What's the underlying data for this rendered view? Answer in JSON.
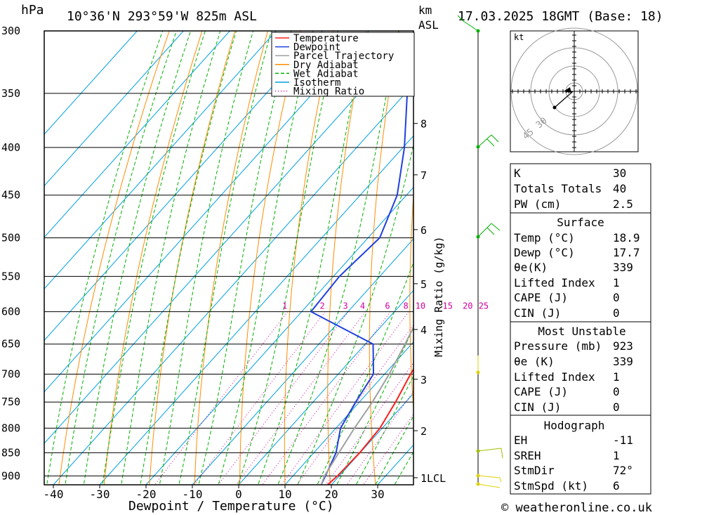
{
  "header": {
    "hpa_unit": "hPa",
    "location": "10°36'N  293°59'W  825m  ASL",
    "km_unit": "km",
    "asl": "ASL",
    "datetime": "17.03.2025  18GMT  (Base: 18)"
  },
  "x_axis_label": "Dewpoint / Temperature (°C)",
  "mixing_axis_label": "Mixing Ratio (g/kg)",
  "legend": [
    {
      "label": "Temperature",
      "color": "#ff2020"
    },
    {
      "label": "Dewpoint",
      "color": "#2040e0"
    },
    {
      "label": "Parcel Trajectory",
      "color": "#a0a0a0"
    },
    {
      "label": "Dry Adiabat",
      "color": "#ff8c00"
    },
    {
      "label": "Wet Adiabat",
      "color": "#00b000"
    },
    {
      "label": "Isotherm",
      "color": "#00a0e0"
    },
    {
      "label": "Mixing Ratio",
      "color": "#d000a0"
    }
  ],
  "chart_data": {
    "type": "line",
    "pressure_levels": [
      300,
      350,
      400,
      450,
      500,
      550,
      600,
      650,
      700,
      750,
      800,
      850,
      900
    ],
    "temperature_ticks": [
      -40,
      -30,
      -20,
      -10,
      0,
      10,
      20,
      30
    ],
    "km_ticks": [
      {
        "label": "8",
        "p": 377
      },
      {
        "label": "7",
        "p": 428
      },
      {
        "label": "6",
        "p": 490
      },
      {
        "label": "5",
        "p": 560
      },
      {
        "label": "4",
        "p": 627
      },
      {
        "label": "3",
        "p": 709
      },
      {
        "label": "2",
        "p": 805
      },
      {
        "label": "1LCL",
        "p": 904
      }
    ],
    "mixing_ratio_labels": [
      "1",
      "2",
      "3",
      "4",
      "6",
      "8",
      "10",
      "15",
      "20",
      "25"
    ],
    "series": [
      {
        "name": "Temperature",
        "color": "#ff2020",
        "points": [
          [
            920,
            19.2
          ],
          [
            900,
            19.6
          ],
          [
            850,
            19.9
          ],
          [
            800,
            19.5
          ],
          [
            750,
            17.8
          ],
          [
            700,
            15.6
          ],
          [
            650,
            13.7
          ],
          [
            600,
            11.8
          ],
          [
            550,
            9.0
          ],
          [
            500,
            5.6
          ],
          [
            450,
            1.7
          ],
          [
            400,
            -5.7
          ],
          [
            350,
            -14.1
          ],
          [
            300,
            -23.6
          ]
        ]
      },
      {
        "name": "Dewpoint",
        "color": "#2040e0",
        "points": [
          [
            920,
            17.8
          ],
          [
            900,
            17.0
          ],
          [
            850,
            14.8
          ],
          [
            800,
            11.0
          ],
          [
            750,
            9.2
          ],
          [
            700,
            7.6
          ],
          [
            650,
            1.7
          ],
          [
            600,
            -18.0
          ],
          [
            550,
            -18.7
          ],
          [
            500,
            -17.5
          ],
          [
            450,
            -22.0
          ],
          [
            400,
            -29.7
          ],
          [
            350,
            -39.6
          ],
          [
            300,
            -45.4
          ]
        ]
      },
      {
        "name": "Parcel Trajectory",
        "color": "#a0a0a0",
        "points": [
          [
            920,
            17.8
          ],
          [
            900,
            16.8
          ],
          [
            850,
            15.4
          ],
          [
            800,
            14.0
          ],
          [
            750,
            12.8
          ],
          [
            700,
            11.0
          ],
          [
            650,
            8.6
          ],
          [
            600,
            5.8
          ],
          [
            550,
            2.4
          ],
          [
            500,
            -1.6
          ],
          [
            450,
            -6.6
          ],
          [
            400,
            -12.8
          ],
          [
            350,
            -20.4
          ],
          [
            300,
            -29.8
          ]
        ]
      }
    ],
    "xlim": [
      -43,
      37
    ],
    "ylim": [
      300,
      920
    ]
  },
  "hodograph": {
    "unit": "kt",
    "ring_labels": [
      "30",
      "45"
    ]
  },
  "indices": {
    "k_label": "K",
    "k_value": "30",
    "tt_label": "Totals Totals",
    "tt_value": "40",
    "pw_label": "PW (cm)",
    "pw_value": "2.5"
  },
  "surface": {
    "title": "Surface",
    "temp_label": "Temp (°C)",
    "temp_value": "18.9",
    "dewp_label": "Dewp (°C)",
    "dewp_value": "17.7",
    "theta_label": "θe(K)",
    "theta_value": "339",
    "li_label": "Lifted Index",
    "li_value": "1",
    "cape_label": "CAPE (J)",
    "cape_value": "0",
    "cin_label": "CIN (J)",
    "cin_value": "0"
  },
  "most_unstable": {
    "title": "Most Unstable",
    "pressure_label": "Pressure (mb)",
    "pressure_value": "923",
    "theta_label": "θe (K)",
    "theta_value": "339",
    "li_label": "Lifted Index",
    "li_value": "1",
    "cape_label": "CAPE (J)",
    "cape_value": "0",
    "cin_label": "CIN (J)",
    "cin_value": "0"
  },
  "hodograph_table": {
    "title": "Hodograph",
    "eh_label": "EH",
    "eh_value": "-11",
    "srh_label": "SREH",
    "srh_value": "1",
    "stmdir_label": "StmDir",
    "stmdir_value": "72°",
    "stmspd_label": "StmSpd (kt)",
    "stmspd_value": "6"
  },
  "footer": {
    "copyright": "© weatheronline.co.uk"
  }
}
